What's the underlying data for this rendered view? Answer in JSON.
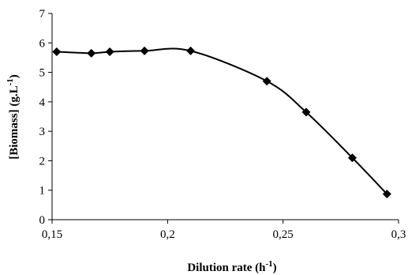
{
  "chart_data": {
    "type": "line",
    "title": "",
    "xlabel": "Dilution rate (h",
    "xlabel_sup": "-1",
    "xlabel_end": ")",
    "ylabel": "[Biomass] (g.L",
    "ylabel_sup": "-1",
    "ylabel_end": ")",
    "xlim": [
      0.15,
      0.3
    ],
    "ylim": [
      0,
      7
    ],
    "x_ticks": [
      0.15,
      0.2,
      0.25,
      0.3
    ],
    "x_tick_labels": [
      "0,15",
      "0,2",
      "0,25",
      "0,3"
    ],
    "y_ticks": [
      0,
      1,
      2,
      3,
      4,
      5,
      6,
      7
    ],
    "y_tick_labels": [
      "0",
      "1",
      "2",
      "3",
      "4",
      "5",
      "6",
      "7"
    ],
    "grid": false,
    "legend": "none",
    "smooth": true,
    "marker": "diamond",
    "color": "#000000",
    "series": [
      {
        "x": [
          0.152,
          0.167,
          0.175,
          0.19,
          0.21,
          0.243,
          0.26,
          0.28,
          0.295
        ],
        "y": [
          5.7,
          5.65,
          5.7,
          5.73,
          5.73,
          4.7,
          3.65,
          2.1,
          0.87
        ]
      }
    ]
  }
}
